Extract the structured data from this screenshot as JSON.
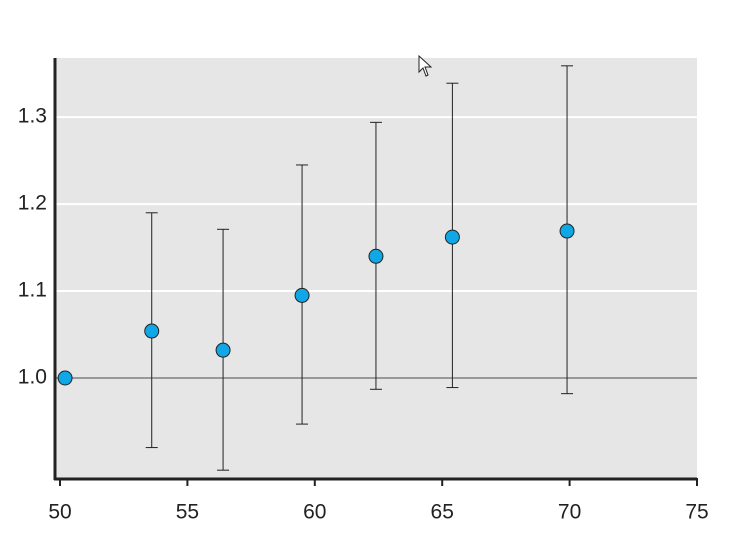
{
  "chart_data": {
    "type": "scatter",
    "series": [
      {
        "color": "#0fa7e6",
        "x": [
          50.2,
          53.6,
          56.4,
          59.5,
          62.4,
          65.4,
          69.9
        ],
        "values": [
          1.0,
          1.054,
          1.032,
          1.095,
          1.14,
          1.162,
          1.169
        ],
        "upper": [
          null,
          1.19,
          1.171,
          1.245,
          1.294,
          1.339,
          1.359
        ],
        "lower": [
          null,
          0.92,
          0.894,
          0.947,
          0.987,
          0.989,
          0.982
        ]
      }
    ],
    "xlim": [
      50,
      75
    ],
    "xticks": [
      50,
      55,
      60,
      65,
      70,
      75
    ],
    "ylim": [
      0.885,
      1.368
    ],
    "yticks": [
      {
        "value": 1,
        "label": "1.0"
      },
      1.1,
      1.2,
      1.3
    ],
    "refline": 1,
    "grid": true
  }
}
